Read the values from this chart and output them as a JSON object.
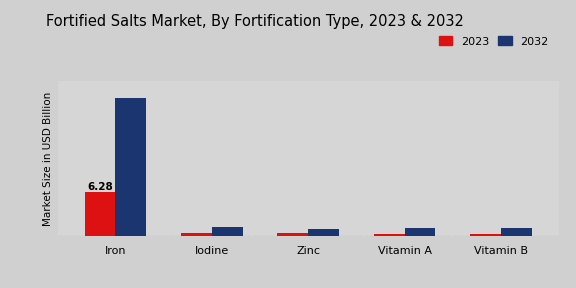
{
  "title": "Fortified Salts Market, By Fortification Type, 2023 & 2032",
  "ylabel": "Market Size in USD Billion",
  "categories": [
    "Iron",
    "Iodine",
    "Zinc",
    "Vitamin A",
    "Vitamin B"
  ],
  "values_2023": [
    6.28,
    0.48,
    0.38,
    0.35,
    0.33
  ],
  "values_2032": [
    19.5,
    1.35,
    1.05,
    1.2,
    1.15
  ],
  "color_2023": "#dd1111",
  "color_2032": "#1a3570",
  "annotation_value": "6.28",
  "background_color": "#d8d8d8",
  "ylim": [
    0,
    22
  ],
  "bar_width": 0.32,
  "legend_labels": [
    "2023",
    "2032"
  ],
  "title_fontsize": 10.5,
  "axis_label_fontsize": 7.5,
  "tick_fontsize": 8
}
